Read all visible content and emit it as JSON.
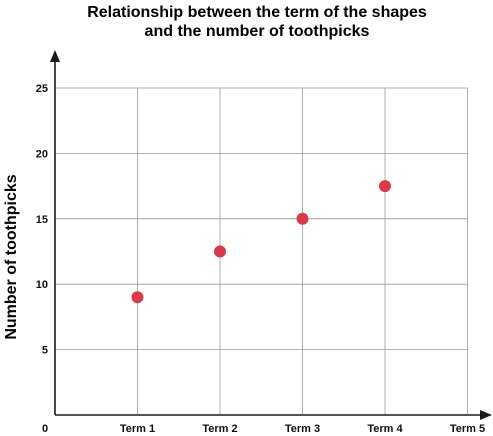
{
  "chart_data": {
    "type": "scatter",
    "title_lines": [
      "Relationship between the term of the shapes",
      "and the number of toothpicks"
    ],
    "xlabel": "",
    "ylabel": "Number of toothpicks",
    "x_origin_label": "0",
    "categories": [
      "Term 1",
      "Term 2",
      "Term 3",
      "Term 4",
      "Term 5"
    ],
    "yticks": [
      5,
      10,
      15,
      20,
      25
    ],
    "ylim": [
      0,
      25
    ],
    "grid": true,
    "series": [
      {
        "color": "#d83a4b",
        "points": [
          {
            "x": "Term 1",
            "y": 9
          },
          {
            "x": "Term 2",
            "y": 12.5
          },
          {
            "x": "Term 3",
            "y": 15
          },
          {
            "x": "Term 4",
            "y": 17.5
          }
        ]
      }
    ]
  }
}
